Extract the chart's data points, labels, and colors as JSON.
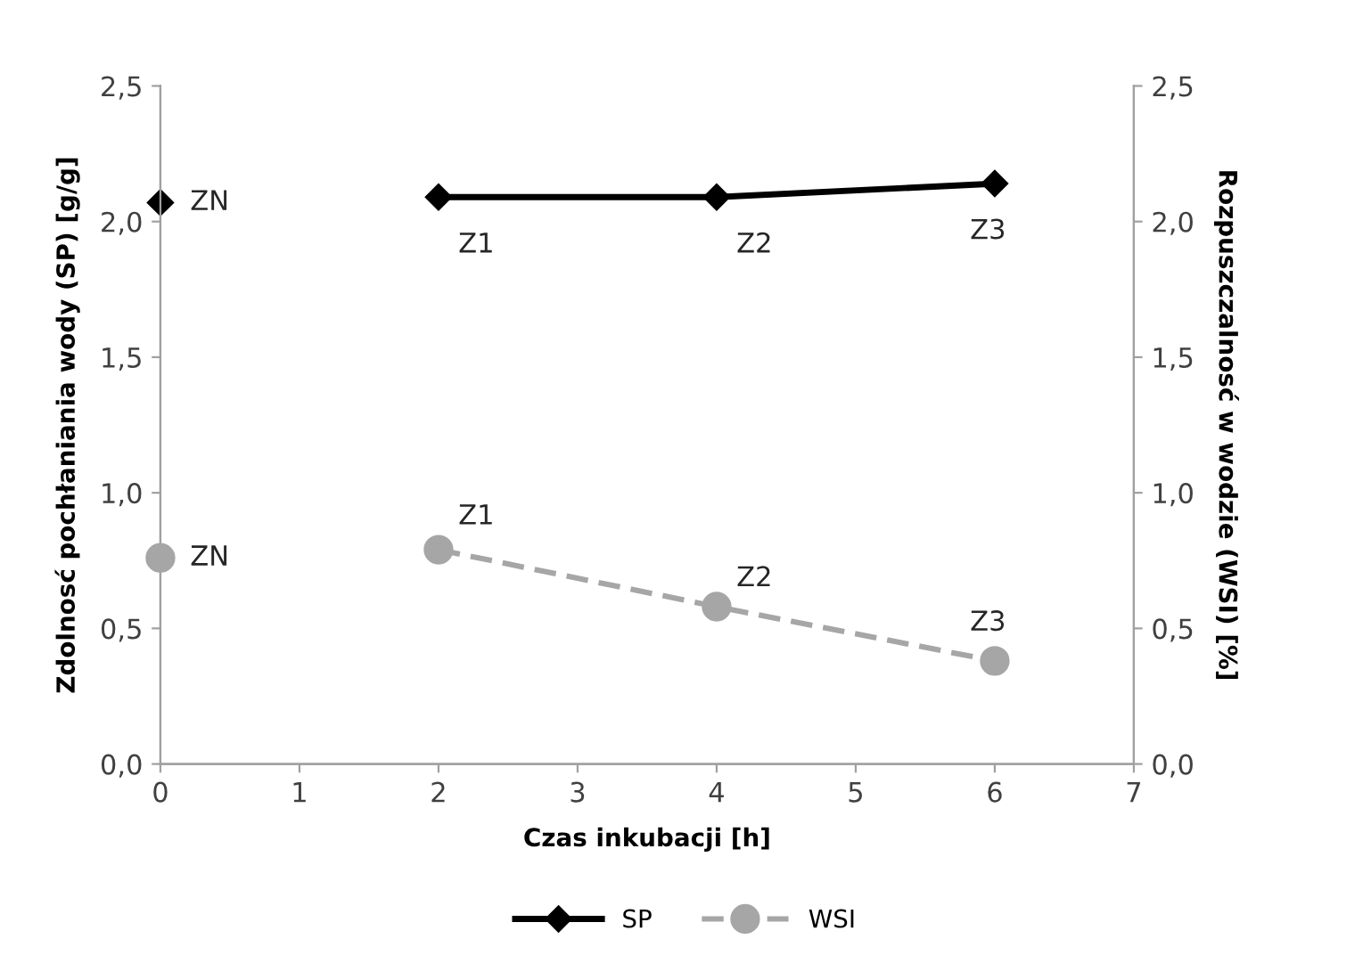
{
  "chart_data": {
    "type": "line",
    "xlabel": "Czas inkubacji [h]",
    "ylabel": "Zdolnosć pochłaniania wody (SP) [g/g]",
    "y2label": "Rozpuszczalnosć w wodzie (WSI) [%]",
    "x": [
      0,
      1,
      2,
      4,
      6
    ],
    "series": [
      {
        "name": "SP",
        "color": "#000000",
        "values": [
          2.07,
          null,
          2.09,
          2.09,
          2.14
        ],
        "marker": "diamond",
        "line_style": "solid"
      },
      {
        "name": "WSI",
        "color": "#a6a6a6",
        "values": [
          0.76,
          null,
          0.79,
          0.58,
          0.38
        ],
        "marker": "circle",
        "line_style": "dashed",
        "axis": "y2"
      }
    ],
    "xlim": [
      0,
      7
    ],
    "xticks": [
      0,
      1,
      2,
      3,
      4,
      5,
      6,
      7
    ],
    "ylim": [
      0,
      2.5
    ],
    "yticks": [
      {
        "value": 0,
        "label": "0,0"
      },
      {
        "value": 0.5,
        "label": "0,5"
      },
      {
        "value": 1,
        "label": "1,0"
      },
      {
        "value": 1.5,
        "label": "1,5"
      },
      {
        "value": 2,
        "label": "2,0"
      },
      {
        "value": 2.5,
        "label": "2,5"
      }
    ],
    "y2lim": [
      0,
      2.5
    ],
    "y2ticks": [
      {
        "value": 0,
        "label": "0,0"
      },
      {
        "value": 0.5,
        "label": "0,5"
      },
      {
        "value": 1,
        "label": "1,0"
      },
      {
        "value": 1.5,
        "label": "1,5"
      },
      {
        "value": 2,
        "label": "2,0"
      },
      {
        "value": 2.5,
        "label": "2,5"
      }
    ],
    "annotations": [
      {
        "text": "ZN",
        "x": 0,
        "y": 2.07
      },
      {
        "text": "Z1",
        "x": 2,
        "y": 2.09
      },
      {
        "text": "Z2",
        "x": 4,
        "y": 2.09
      },
      {
        "text": "Z3",
        "x": 6,
        "y": 2.14
      },
      {
        "text": "ZN",
        "x": 0,
        "y": 0.76
      },
      {
        "text": "Z1",
        "x": 2,
        "y": 0.79
      },
      {
        "text": "Z2",
        "x": 4,
        "y": 0.58
      },
      {
        "text": "Z3",
        "x": 6,
        "y": 0.38
      }
    ],
    "grid": false,
    "legend": "bottom"
  }
}
